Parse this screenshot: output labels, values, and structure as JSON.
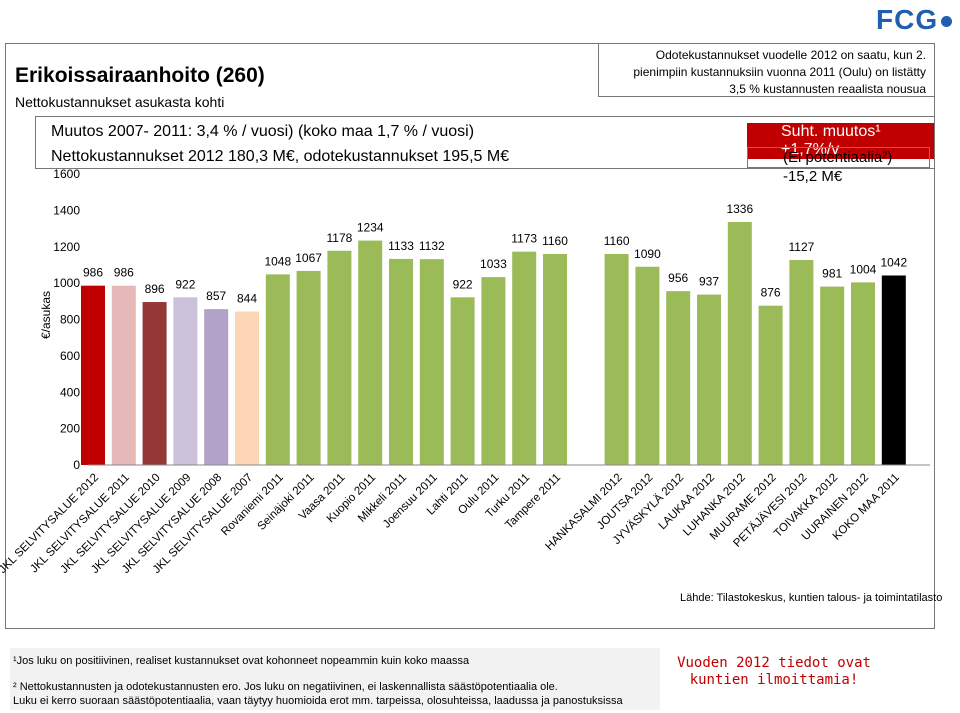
{
  "brand": {
    "name": "FCG"
  },
  "header": {
    "title": "Erikoissairaanhoito (260)",
    "subtitle": "Nettokustannukset asukasta kohti",
    "note_lines": [
      "Odotekustannukset vuodelle 2012 on saatu, kun 2.",
      "pienimpiin kustannuksiin vuonna 2011 (Oulu) on listätty",
      "3,5 % kustannusten reaalista nousua"
    ]
  },
  "stats": {
    "change": "Muutos 2007- 2011: 3,4 % / vuosi) (koko maa 1,7 % / vuosi)",
    "costs": "Nettokustannukset 2012 180,3 M€, odotekustannukset 195,5 M€",
    "relative_change": "Suht. muutos¹   +1,7%/v",
    "potential": "(Ei potentiaalia²)  -15,2 M€"
  },
  "colors": {
    "green": "#9bbb59",
    "accent_red": "#c00000"
  },
  "chart_data": {
    "type": "bar",
    "ylabel": "€/asukas",
    "ylim": [
      0,
      1600
    ],
    "yticks": [
      0,
      200,
      400,
      600,
      800,
      1000,
      1200,
      1400,
      1600
    ],
    "categories": [
      "JKL SELVITYSALUE 2012",
      "JKL SELVITYSALUE 2011",
      "JKL SELVITYSALUE 2010",
      "JKL SELVITYSALUE 2009",
      "JKL SELVITYSALUE 2008",
      "JKL SELVITYSALUE 2007",
      "Rovaniemi 2011",
      "Seinäjoki 2011",
      "Vaasa 2011",
      "Kuopio 2011",
      "Mikkeli 2011",
      "Joensuu 2011",
      "Lahti 2011",
      "Oulu 2011",
      "Turku 2011",
      "Tampere 2011",
      "",
      "HANKASALMI 2012",
      "JOUTSA 2012",
      "JYVÄSKYLÄ 2012",
      "LAUKAA 2012",
      "LUHANKA 2012",
      "MUURAME 2012",
      "PETÄJÄVESI 2012",
      "TOIVAKKA 2012",
      "UURAINEN 2012",
      "KOKO MAA 2011"
    ],
    "values": [
      986,
      986,
      896,
      922,
      857,
      844,
      1048,
      1067,
      1178,
      1234,
      1133,
      1132,
      922,
      1033,
      1173,
      1160,
      null,
      1160,
      1090,
      956,
      937,
      1336,
      876,
      1127,
      981,
      1004,
      1042
    ],
    "bar_colors": [
      "#c00000",
      "#e6b9b8",
      "#953735",
      "#ccc1da",
      "#b3a2c7",
      "#fcd5b5",
      "#9bbb59",
      "#9bbb59",
      "#9bbb59",
      "#9bbb59",
      "#9bbb59",
      "#9bbb59",
      "#9bbb59",
      "#9bbb59",
      "#9bbb59",
      "#9bbb59",
      "#ffffff",
      "#9bbb59",
      "#9bbb59",
      "#9bbb59",
      "#9bbb59",
      "#9bbb59",
      "#9bbb59",
      "#9bbb59",
      "#9bbb59",
      "#9bbb59",
      "#000000"
    ]
  },
  "footer": {
    "source": "Lähde: Tilastokeskus, kuntien talous- ja toimintatilasto",
    "footnote1": "¹Jos luku on positiivinen, realiset kustannukset ovat kohonneet nopeammin kuin koko maassa",
    "footnote2a": "² Nettokustannusten ja odotekustannusten ero. Jos luku on negatiivinen, ei laskennallista säästöpotentiaalia ole.",
    "footnote2b": "Luku ei kerro suoraan säästöpotentiaalia, vaan täytyy huomioida erot mm. tarpeissa, olosuhteissa, laadussa ja panostuksissa",
    "note2": "Vuoden 2012 tiedot ovat kuntien ilmoittamia!"
  }
}
